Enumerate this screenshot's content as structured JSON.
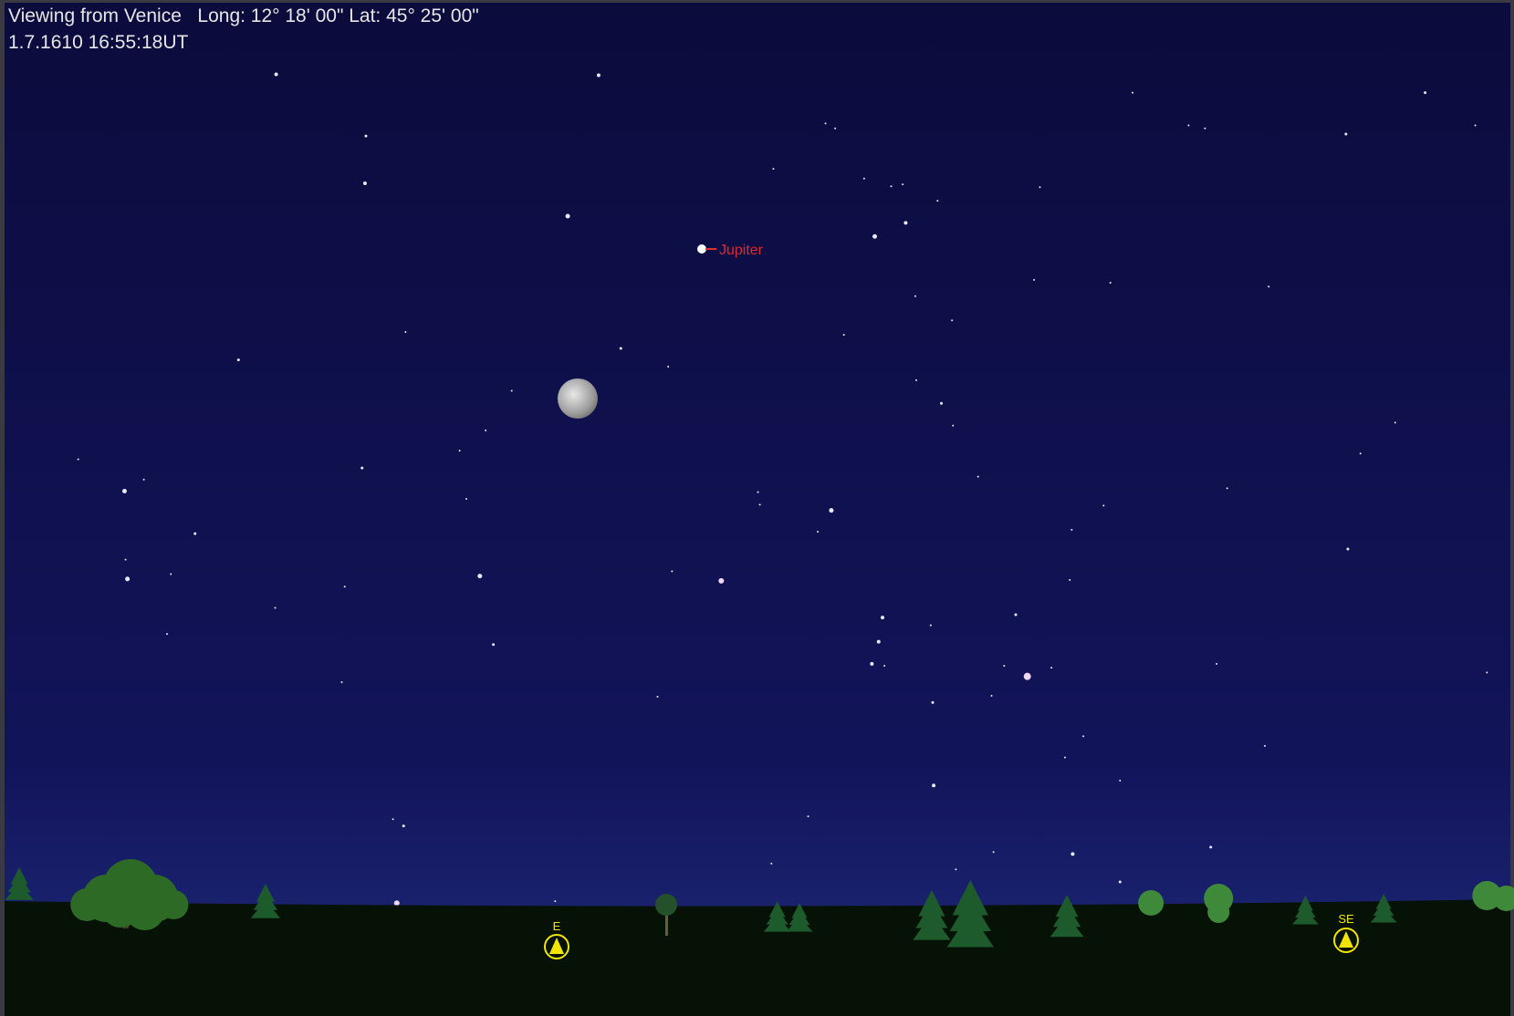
{
  "header": {
    "location": "Viewing from Venice",
    "coordinates": "Long: 12° 18' 00\" Lat: 45° 25' 00\"",
    "datetime": "1.7.1610 16:55:18UT"
  },
  "labels": {
    "jupiter": "Jupiter"
  },
  "compass": [
    "E",
    "SE"
  ]
}
